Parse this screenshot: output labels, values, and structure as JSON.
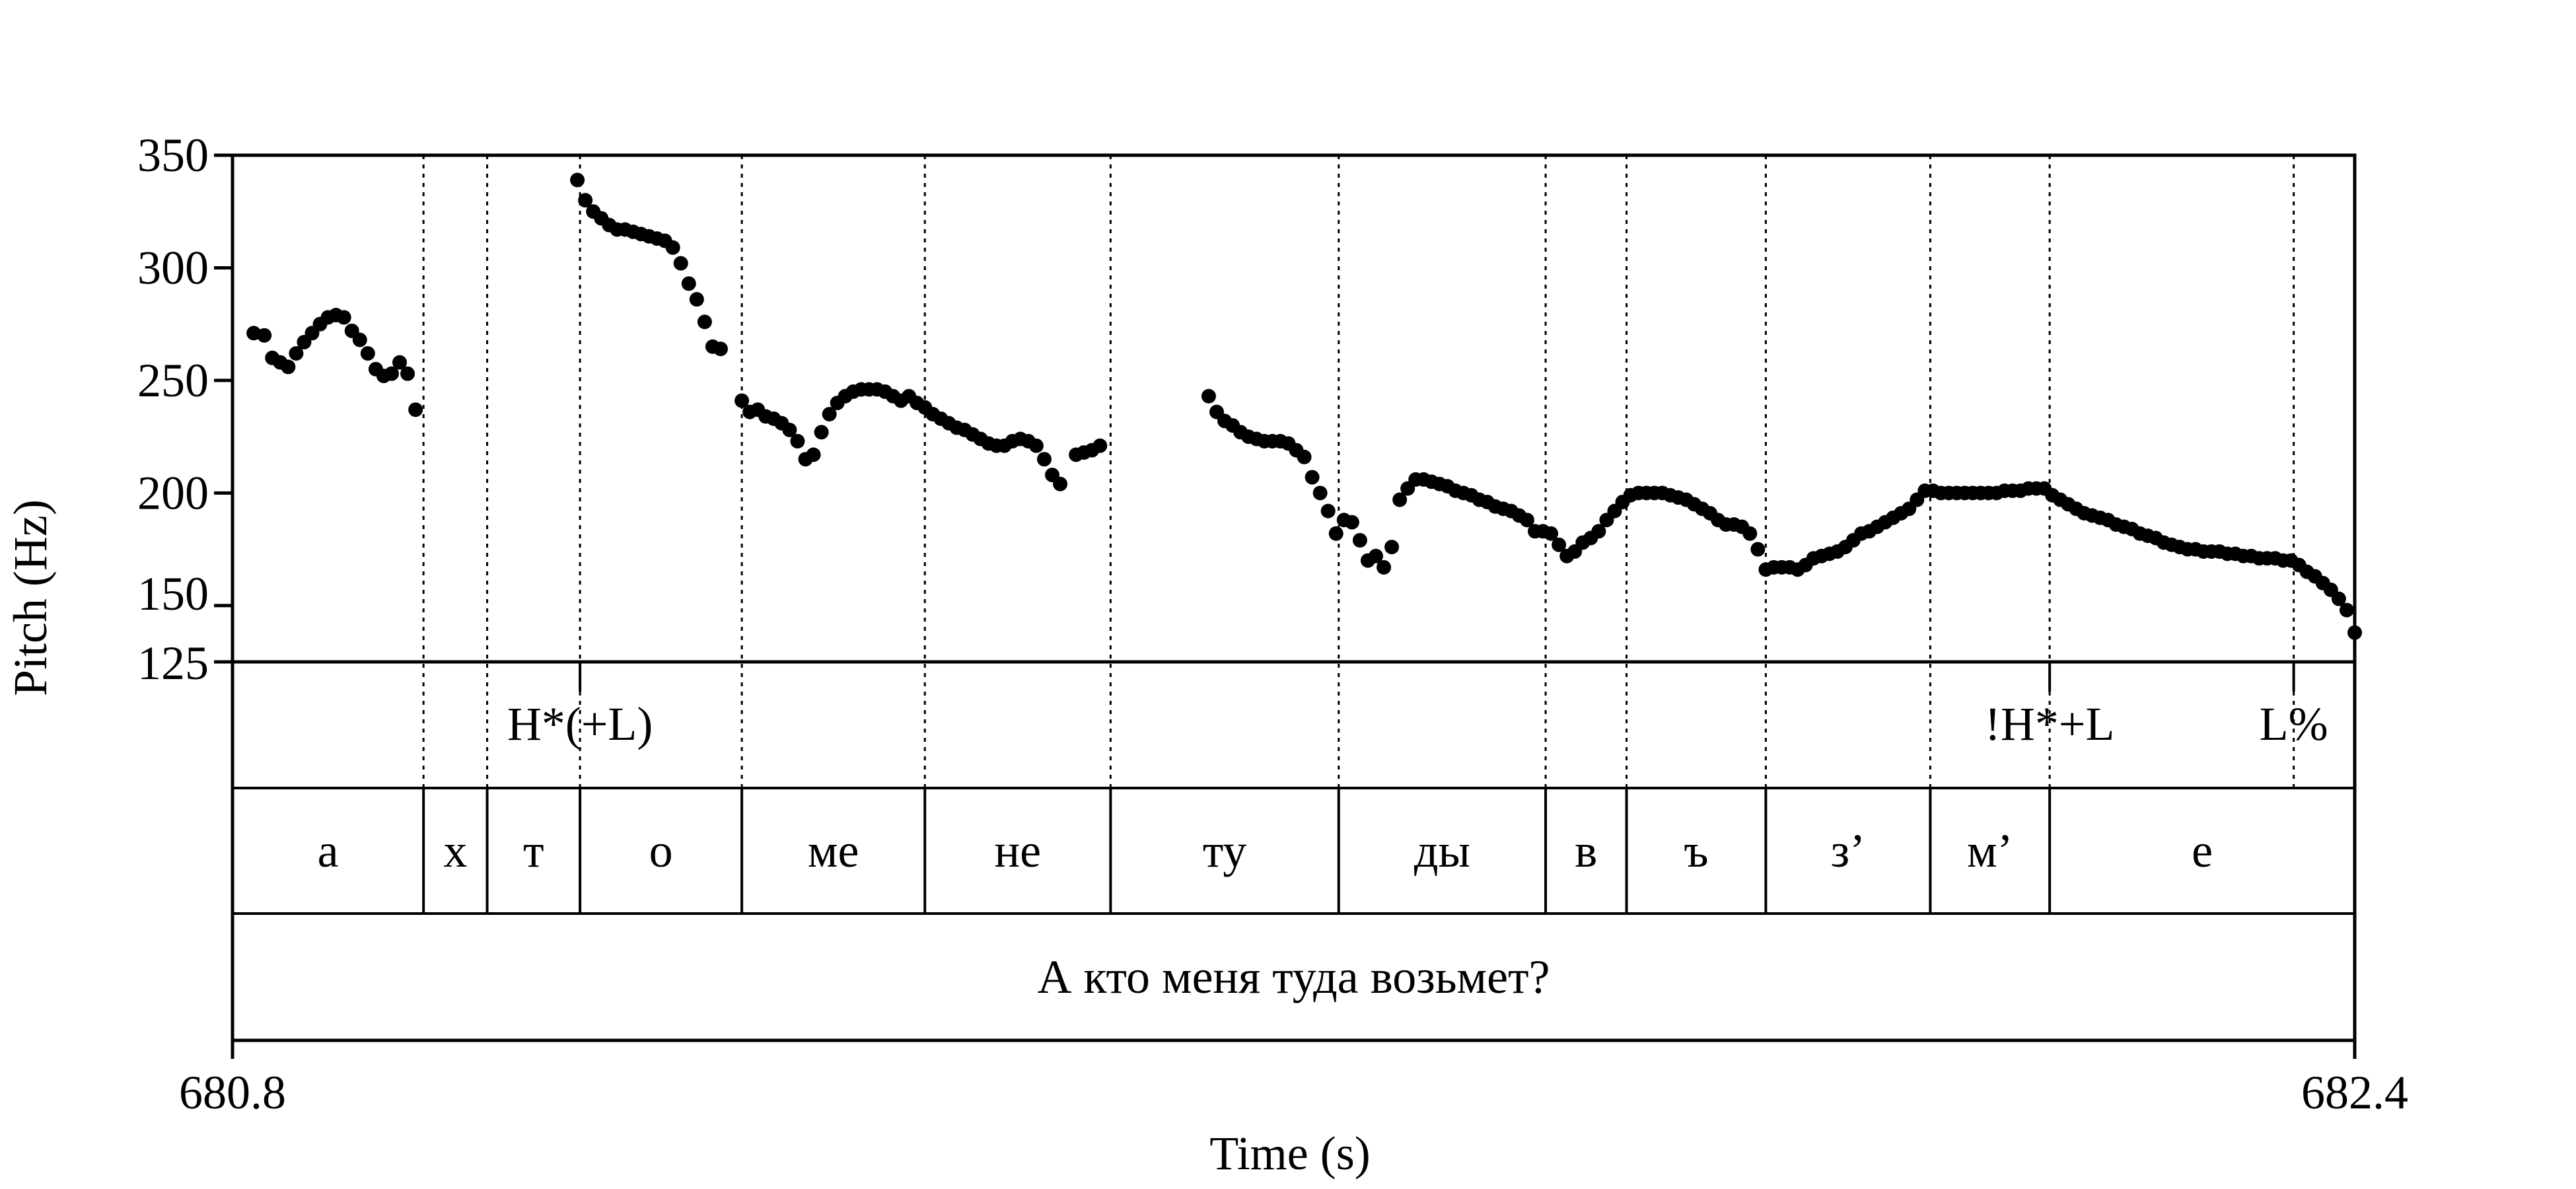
{
  "chart_data": {
    "type": "scatter",
    "xlabel": "Time (s)",
    "ylabel": "Pitch (Hz)",
    "xlim": [
      680.8,
      682.4
    ],
    "ylim": [
      125,
      350
    ],
    "xticks": [
      {
        "value": 680.8,
        "label": "680.8"
      },
      {
        "value": 682.4,
        "label": "682.4"
      }
    ],
    "yticks": [
      {
        "value": 125,
        "label": "125"
      },
      {
        "value": 150,
        "label": "150"
      },
      {
        "value": 200,
        "label": "200"
      },
      {
        "value": 250,
        "label": "250"
      },
      {
        "value": 300,
        "label": "300"
      },
      {
        "value": 350,
        "label": "350"
      }
    ],
    "boundaries": [
      680.944,
      680.992,
      681.062,
      681.184,
      681.322,
      681.462,
      681.634,
      681.79,
      681.851,
      681.956,
      682.08,
      682.17,
      682.354
    ],
    "tones": [
      {
        "time": 681.062,
        "label": "H*(+L)"
      },
      {
        "time": 682.17,
        "label": "!H*+L"
      },
      {
        "time": 682.354,
        "label": "L%"
      }
    ],
    "syllables": [
      {
        "start": 680.8,
        "end": 680.944,
        "label": "а"
      },
      {
        "start": 680.944,
        "end": 680.992,
        "label": "х"
      },
      {
        "start": 680.992,
        "end": 681.062,
        "label": "т"
      },
      {
        "start": 681.062,
        "end": 681.184,
        "label": "о"
      },
      {
        "start": 681.184,
        "end": 681.322,
        "label": "ме"
      },
      {
        "start": 681.322,
        "end": 681.462,
        "label": "не"
      },
      {
        "start": 681.462,
        "end": 681.634,
        "label": "ту"
      },
      {
        "start": 681.634,
        "end": 681.79,
        "label": "ды"
      },
      {
        "start": 681.79,
        "end": 681.851,
        "label": "в"
      },
      {
        "start": 681.851,
        "end": 681.956,
        "label": "ъ"
      },
      {
        "start": 681.956,
        "end": 682.08,
        "label": "з’"
      },
      {
        "start": 682.08,
        "end": 682.17,
        "label": "м’"
      },
      {
        "start": 682.17,
        "end": 682.4,
        "label": "е"
      }
    ],
    "sentence": "А кто меня туда возьмет?",
    "series": [
      {
        "points": [
          [
            680.816,
            271
          ],
          [
            680.824,
            270
          ],
          [
            680.83,
            260
          ],
          [
            680.836,
            258
          ],
          [
            680.842,
            256
          ],
          [
            680.848,
            262
          ],
          [
            680.854,
            267
          ],
          [
            680.86,
            271
          ],
          [
            680.866,
            275
          ],
          [
            680.872,
            278
          ],
          [
            680.878,
            279
          ],
          [
            680.884,
            278
          ],
          [
            680.89,
            272
          ],
          [
            680.896,
            268
          ],
          [
            680.902,
            262
          ],
          [
            680.908,
            255
          ],
          [
            680.914,
            252
          ],
          [
            680.92,
            253
          ],
          [
            680.926,
            258
          ],
          [
            680.932,
            253
          ],
          [
            680.938,
            237
          ],
          [
            681.06,
            339
          ],
          [
            681.066,
            330
          ],
          [
            681.072,
            325
          ],
          [
            681.078,
            322
          ],
          [
            681.084,
            319
          ],
          [
            681.09,
            317
          ],
          [
            681.096,
            317
          ],
          [
            681.102,
            316
          ],
          [
            681.108,
            315
          ],
          [
            681.114,
            314
          ],
          [
            681.12,
            313
          ],
          [
            681.126,
            312
          ],
          [
            681.132,
            309
          ],
          [
            681.138,
            302
          ],
          [
            681.144,
            293
          ],
          [
            681.15,
            286
          ],
          [
            681.156,
            276
          ],
          [
            681.162,
            265
          ],
          [
            681.168,
            264
          ],
          [
            681.184,
            241
          ],
          [
            681.19,
            236
          ],
          [
            681.196,
            237
          ],
          [
            681.202,
            234
          ],
          [
            681.208,
            233
          ],
          [
            681.214,
            231
          ],
          [
            681.22,
            228
          ],
          [
            681.226,
            223
          ],
          [
            681.232,
            215
          ],
          [
            681.238,
            217
          ],
          [
            681.244,
            227
          ],
          [
            681.25,
            235
          ],
          [
            681.256,
            240
          ],
          [
            681.262,
            243
          ],
          [
            681.268,
            245
          ],
          [
            681.274,
            246
          ],
          [
            681.28,
            246
          ],
          [
            681.286,
            246
          ],
          [
            681.292,
            245
          ],
          [
            681.298,
            243
          ],
          [
            681.304,
            241
          ],
          [
            681.31,
            243
          ],
          [
            681.316,
            240
          ],
          [
            681.322,
            238
          ],
          [
            681.328,
            235
          ],
          [
            681.334,
            233
          ],
          [
            681.34,
            231
          ],
          [
            681.346,
            229
          ],
          [
            681.352,
            228
          ],
          [
            681.358,
            226
          ],
          [
            681.364,
            224
          ],
          [
            681.37,
            222
          ],
          [
            681.376,
            221
          ],
          [
            681.382,
            221
          ],
          [
            681.388,
            223
          ],
          [
            681.394,
            224
          ],
          [
            681.4,
            223
          ],
          [
            681.406,
            221
          ],
          [
            681.412,
            215
          ],
          [
            681.418,
            208
          ],
          [
            681.424,
            204
          ],
          [
            681.436,
            217
          ],
          [
            681.442,
            218
          ],
          [
            681.448,
            219
          ],
          [
            681.454,
            221
          ],
          [
            681.536,
            243
          ],
          [
            681.542,
            236
          ],
          [
            681.548,
            232
          ],
          [
            681.554,
            230
          ],
          [
            681.56,
            227
          ],
          [
            681.566,
            225
          ],
          [
            681.572,
            224
          ],
          [
            681.578,
            223
          ],
          [
            681.584,
            223
          ],
          [
            681.59,
            223
          ],
          [
            681.596,
            222
          ],
          [
            681.602,
            219
          ],
          [
            681.608,
            216
          ],
          [
            681.614,
            207
          ],
          [
            681.62,
            200
          ],
          [
            681.626,
            192
          ],
          [
            681.632,
            182
          ],
          [
            681.638,
            188
          ],
          [
            681.644,
            187
          ],
          [
            681.65,
            179
          ],
          [
            681.656,
            170
          ],
          [
            681.662,
            172
          ],
          [
            681.668,
            167
          ],
          [
            681.674,
            176
          ],
          [
            681.68,
            197
          ],
          [
            681.686,
            202
          ],
          [
            681.692,
            206
          ],
          [
            681.698,
            206
          ],
          [
            681.704,
            205
          ],
          [
            681.71,
            204
          ],
          [
            681.716,
            203
          ],
          [
            681.722,
            201
          ],
          [
            681.728,
            200
          ],
          [
            681.734,
            199
          ],
          [
            681.74,
            197
          ],
          [
            681.746,
            196
          ],
          [
            681.752,
            194
          ],
          [
            681.758,
            193
          ],
          [
            681.764,
            192
          ],
          [
            681.77,
            190
          ],
          [
            681.776,
            188
          ],
          [
            681.782,
            183
          ],
          [
            681.788,
            183
          ],
          [
            681.794,
            182
          ],
          [
            681.8,
            177
          ],
          [
            681.806,
            172
          ],
          [
            681.812,
            174
          ],
          [
            681.818,
            178
          ],
          [
            681.824,
            180
          ],
          [
            681.83,
            183
          ],
          [
            681.836,
            188
          ],
          [
            681.842,
            192
          ],
          [
            681.848,
            196
          ],
          [
            681.854,
            199
          ],
          [
            681.86,
            200
          ],
          [
            681.866,
            200
          ],
          [
            681.872,
            200
          ],
          [
            681.878,
            200
          ],
          [
            681.884,
            199
          ],
          [
            681.89,
            198
          ],
          [
            681.896,
            197
          ],
          [
            681.902,
            195
          ],
          [
            681.908,
            193
          ],
          [
            681.914,
            191
          ],
          [
            681.92,
            188
          ],
          [
            681.926,
            186
          ],
          [
            681.932,
            186
          ],
          [
            681.938,
            185
          ],
          [
            681.944,
            182
          ],
          [
            681.95,
            175
          ],
          [
            681.956,
            166
          ],
          [
            681.962,
            167
          ],
          [
            681.968,
            167
          ],
          [
            681.974,
            167
          ],
          [
            681.98,
            166
          ],
          [
            681.986,
            168
          ],
          [
            681.992,
            171
          ],
          [
            681.998,
            172
          ],
          [
            682.004,
            173
          ],
          [
            682.01,
            174
          ],
          [
            682.016,
            176
          ],
          [
            682.022,
            179
          ],
          [
            682.028,
            182
          ],
          [
            682.034,
            183
          ],
          [
            682.04,
            185
          ],
          [
            682.046,
            187
          ],
          [
            682.052,
            189
          ],
          [
            682.058,
            191
          ],
          [
            682.064,
            193
          ],
          [
            682.07,
            197
          ],
          [
            682.076,
            201
          ],
          [
            682.082,
            201
          ],
          [
            682.088,
            200
          ],
          [
            682.094,
            200
          ],
          [
            682.1,
            200
          ],
          [
            682.106,
            200
          ],
          [
            682.112,
            200
          ],
          [
            682.118,
            200
          ],
          [
            682.124,
            200
          ],
          [
            682.13,
            200
          ],
          [
            682.136,
            201
          ],
          [
            682.142,
            201
          ],
          [
            682.148,
            201
          ],
          [
            682.154,
            202
          ],
          [
            682.16,
            202
          ],
          [
            682.166,
            202
          ],
          [
            682.172,
            199
          ],
          [
            682.178,
            197
          ],
          [
            682.184,
            195
          ],
          [
            682.19,
            193
          ],
          [
            682.196,
            191
          ],
          [
            682.202,
            190
          ],
          [
            682.208,
            189
          ],
          [
            682.214,
            188
          ],
          [
            682.22,
            186
          ],
          [
            682.226,
            185
          ],
          [
            682.232,
            184
          ],
          [
            682.238,
            182
          ],
          [
            682.244,
            181
          ],
          [
            682.25,
            180
          ],
          [
            682.256,
            178
          ],
          [
            682.262,
            177
          ],
          [
            682.268,
            176
          ],
          [
            682.274,
            175
          ],
          [
            682.28,
            175
          ],
          [
            682.286,
            174
          ],
          [
            682.292,
            174
          ],
          [
            682.298,
            174
          ],
          [
            682.304,
            173
          ],
          [
            682.31,
            173
          ],
          [
            682.316,
            172
          ],
          [
            682.322,
            172
          ],
          [
            682.328,
            171
          ],
          [
            682.334,
            171
          ],
          [
            682.34,
            171
          ],
          [
            682.346,
            170
          ],
          [
            682.352,
            170
          ],
          [
            682.358,
            168
          ],
          [
            682.364,
            165
          ],
          [
            682.37,
            163
          ],
          [
            682.376,
            160
          ],
          [
            682.382,
            157
          ],
          [
            682.388,
            153
          ],
          [
            682.394,
            148
          ],
          [
            682.4,
            138
          ]
        ]
      }
    ]
  }
}
